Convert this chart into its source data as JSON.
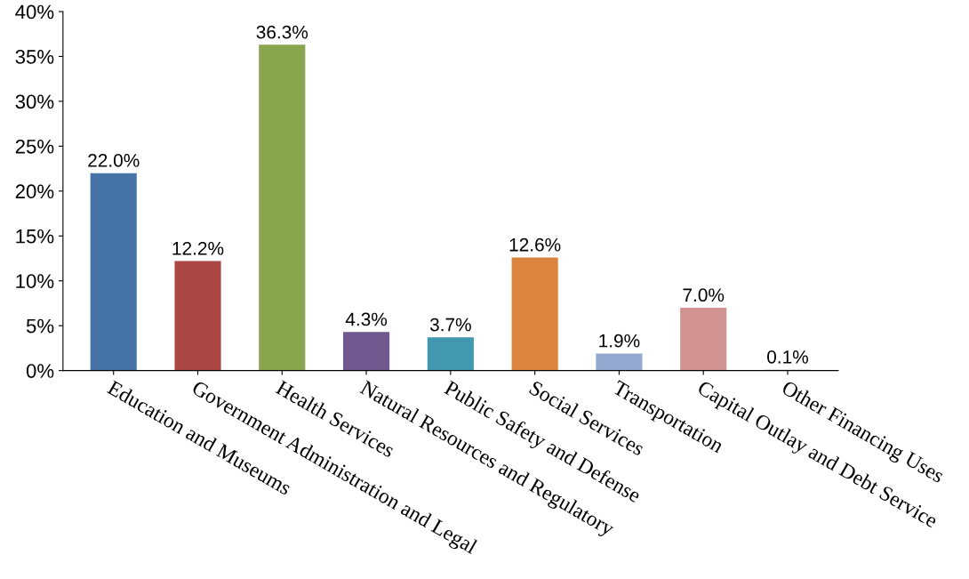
{
  "chart_data": {
    "type": "bar",
    "categories": [
      "Education and Museums",
      "Government Administration and Legal",
      "Health Services",
      "Natural Resources and Regulatory",
      "Public Safety and Defense",
      "Social Services",
      "Transportation",
      "Capital Outlay and Debt Service",
      "Other Financing Uses"
    ],
    "values": [
      22.0,
      12.2,
      36.3,
      4.3,
      3.7,
      12.6,
      1.9,
      7.0,
      0.1
    ],
    "colors": [
      "#4572a7",
      "#aa4643",
      "#89a54e",
      "#71588f",
      "#4198af",
      "#db843d",
      "#93a9cf",
      "#d19392",
      "#8fa86d"
    ],
    "value_labels": [
      "22.0%",
      "12.2%",
      "36.3%",
      "4.3%",
      "3.7%",
      "12.6%",
      "1.9%",
      "7.0%",
      "0.1%"
    ],
    "ylim": [
      0,
      40
    ],
    "yticks": [
      {
        "value": 0,
        "label": "0%"
      },
      {
        "value": 5,
        "label": "5%"
      },
      {
        "value": 10,
        "label": "10%"
      },
      {
        "value": 15,
        "label": "15%"
      },
      {
        "value": 20,
        "label": "20%"
      },
      {
        "value": 25,
        "label": "25%"
      },
      {
        "value": 30,
        "label": "30%"
      },
      {
        "value": 35,
        "label": "35%"
      },
      {
        "value": 40,
        "label": "40%"
      }
    ],
    "grid": false
  }
}
